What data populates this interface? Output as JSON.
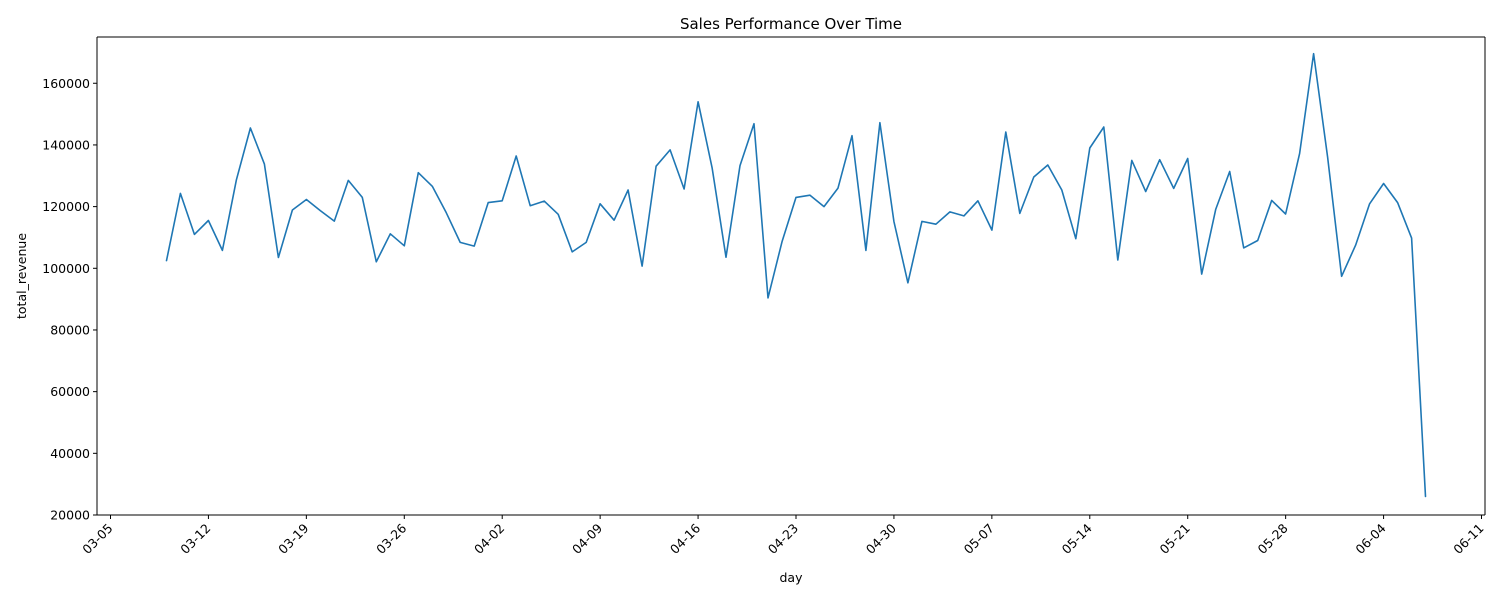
{
  "chart_data": {
    "type": "line",
    "title": "Sales Performance Over Time",
    "xlabel": "day",
    "ylabel": "total_revenue",
    "x_tick_labels": [
      "03-05",
      "03-12",
      "03-19",
      "03-26",
      "04-02",
      "04-09",
      "04-16",
      "04-23",
      "04-30",
      "05-07",
      "05-14",
      "05-21",
      "05-28",
      "06-04",
      "06-11"
    ],
    "y_ticks": [
      20000,
      40000,
      60000,
      80000,
      100000,
      120000,
      140000,
      160000
    ],
    "xlim": [
      "03-04",
      "06-11"
    ],
    "ylim": [
      20000,
      175000
    ],
    "grid": false,
    "line_color": "#1f77b4",
    "series": [
      {
        "x": [
          "03-09",
          "03-10",
          "03-11",
          "03-12",
          "03-13",
          "03-14",
          "03-15",
          "03-16",
          "03-17",
          "03-18",
          "03-19",
          "03-20",
          "03-21",
          "03-22",
          "03-23",
          "03-24",
          "03-25",
          "03-26",
          "03-27",
          "03-28",
          "03-29",
          "03-30",
          "03-31",
          "04-01",
          "04-02",
          "04-03",
          "04-04",
          "04-05",
          "04-06",
          "04-07",
          "04-08",
          "04-09",
          "04-10",
          "04-11",
          "04-12",
          "04-13",
          "04-14",
          "04-15",
          "04-16",
          "04-17",
          "04-18",
          "04-19",
          "04-20",
          "04-21",
          "04-22",
          "04-23",
          "04-24",
          "04-25",
          "04-26",
          "04-27",
          "04-28",
          "04-29",
          "04-30",
          "05-01",
          "05-02",
          "05-03",
          "05-04",
          "05-05",
          "05-06",
          "05-07",
          "05-08",
          "05-09",
          "05-10",
          "05-11",
          "05-12",
          "05-13",
          "05-14",
          "05-15",
          "05-16",
          "05-17",
          "05-18",
          "05-19",
          "05-20",
          "05-21",
          "05-22",
          "05-23",
          "05-24",
          "05-25",
          "05-26",
          "05-27",
          "05-28",
          "05-29",
          "05-30",
          "05-31",
          "06-01",
          "06-02",
          "06-03",
          "06-04",
          "06-05",
          "06-06",
          "06-07"
        ],
        "values": [
          102500,
          124300,
          111000,
          115500,
          105800,
          128700,
          145500,
          133800,
          103500,
          118900,
          122300,
          118700,
          115300,
          128500,
          123000,
          102100,
          111200,
          107300,
          131000,
          126600,
          118000,
          108400,
          107200,
          121300,
          121900,
          136400,
          120300,
          121800,
          117500,
          105300,
          108400,
          120900,
          115600,
          125400,
          100700,
          133100,
          138400,
          125700,
          154000,
          132600,
          103600,
          133300,
          146900,
          90400,
          108600,
          123000,
          123700,
          120000,
          126000,
          143000,
          105800,
          147200,
          115200,
          95300,
          115200,
          114300,
          118300,
          117000,
          121900,
          112400,
          144200,
          117800,
          129600,
          133500,
          125400,
          109600,
          139000,
          145800,
          102700,
          135000,
          124900,
          135200,
          125900,
          135600,
          98100,
          119100,
          131400,
          106600,
          109000,
          122000,
          117600,
          137200,
          169600,
          136100,
          97400,
          107500,
          120900,
          127500,
          121300,
          109800,
          26000
        ]
      }
    ]
  }
}
